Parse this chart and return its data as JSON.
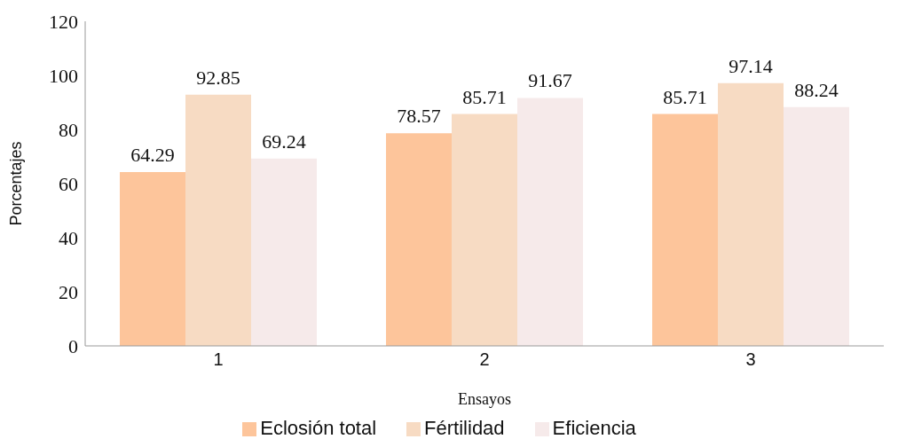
{
  "chart_data": {
    "type": "bar",
    "xlabel": "Ensayos",
    "ylabel": "Porcentajes",
    "categories": [
      "1",
      "2",
      "3"
    ],
    "series": [
      {
        "name": "Eclosión total",
        "color": "#fdc59b",
        "values": [
          64.29,
          78.57,
          85.71
        ]
      },
      {
        "name": "Fértilidad",
        "color": "#f7dbc3",
        "values": [
          92.85,
          85.71,
          97.14
        ]
      },
      {
        "name": "Eficiencia",
        "color": "#f6eaea",
        "values": [
          69.24,
          91.67,
          88.24
        ]
      }
    ],
    "ylim": [
      0,
      120
    ],
    "yticks": [
      0,
      20,
      40,
      60,
      80,
      100,
      120
    ],
    "grid": false,
    "legend": "bottom",
    "data_labels": true
  }
}
